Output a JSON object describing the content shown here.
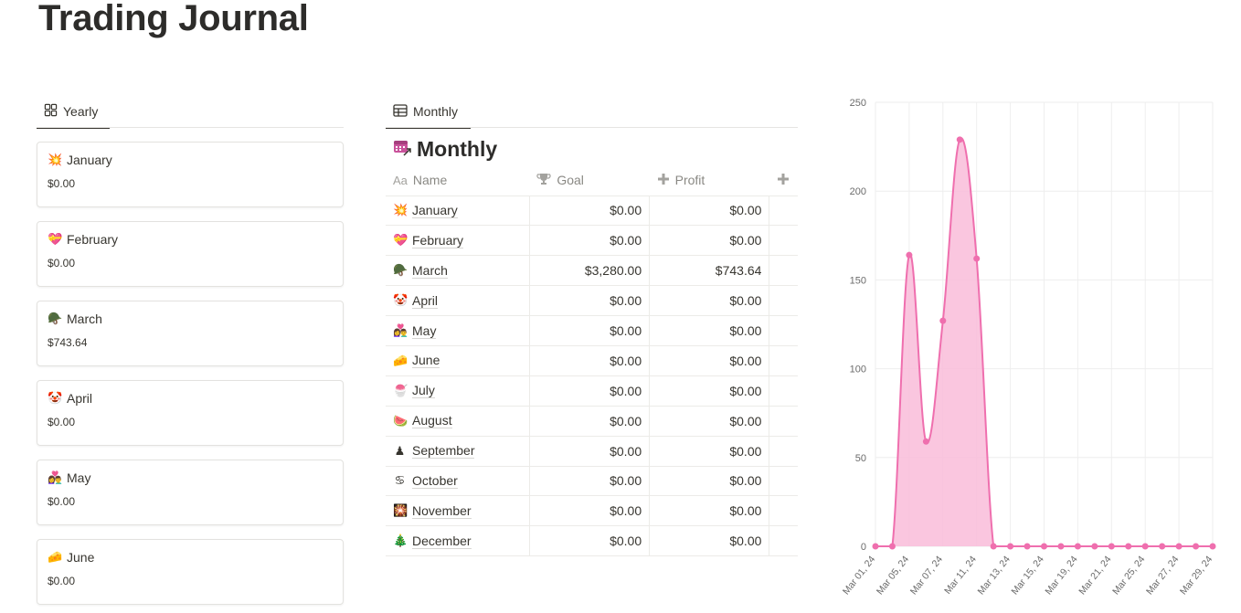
{
  "page": {
    "title": "Trading Journal"
  },
  "tabs": {
    "yearly": {
      "label": "Yearly",
      "icon": "gallery-grid-icon"
    },
    "monthly": {
      "label": "Monthly",
      "icon": "table-icon"
    }
  },
  "gallery": {
    "cards": [
      {
        "emoji": "💥",
        "name": "January",
        "value": "$0.00"
      },
      {
        "emoji": "💝",
        "name": "February",
        "value": "$0.00"
      },
      {
        "emoji": "🪖",
        "name": "March",
        "value": "$743.64"
      },
      {
        "emoji": "🤡",
        "name": "April",
        "value": "$0.00"
      },
      {
        "emoji": "👩‍❤️‍👨",
        "name": "May",
        "value": "$0.00"
      },
      {
        "emoji": "🧀",
        "name": "June",
        "value": "$0.00"
      }
    ]
  },
  "table": {
    "title": "Monthly",
    "headers": {
      "name": "Name",
      "goal": "Goal",
      "profit": "Profit",
      "name_prefix": "Aa"
    },
    "rows": [
      {
        "emoji": "💥",
        "name": "January",
        "goal": "$0.00",
        "profit": "$0.00"
      },
      {
        "emoji": "💝",
        "name": "February",
        "goal": "$0.00",
        "profit": "$0.00"
      },
      {
        "emoji": "🪖",
        "name": "March",
        "goal": "$3,280.00",
        "profit": "$743.64"
      },
      {
        "emoji": "🤡",
        "name": "April",
        "goal": "$0.00",
        "profit": "$0.00"
      },
      {
        "emoji": "👩‍❤️‍👨",
        "name": "May",
        "goal": "$0.00",
        "profit": "$0.00"
      },
      {
        "emoji": "🧀",
        "name": "June",
        "goal": "$0.00",
        "profit": "$0.00"
      },
      {
        "emoji": "🍧",
        "name": "July",
        "goal": "$0.00",
        "profit": "$0.00"
      },
      {
        "emoji": "🍉",
        "name": "August",
        "goal": "$0.00",
        "profit": "$0.00"
      },
      {
        "emoji": "♟",
        "name": "September",
        "goal": "$0.00",
        "profit": "$0.00"
      },
      {
        "emoji": "♋",
        "name": "October",
        "goal": "$0.00",
        "profit": "$0.00"
      },
      {
        "emoji": "🎇",
        "name": "November",
        "goal": "$0.00",
        "profit": "$0.00"
      },
      {
        "emoji": "🎄",
        "name": "December",
        "goal": "$0.00",
        "profit": "$0.00"
      }
    ]
  },
  "colors": {
    "accent": "#ef6fae",
    "fill": "#f9bcd9",
    "grid": "#eeeeee"
  },
  "chart_data": {
    "type": "area",
    "x": [
      "Mar 01, 24",
      "Mar 04, 24",
      "Mar 05, 24",
      "Mar 06, 24",
      "Mar 07, 24",
      "Mar 08, 24",
      "Mar 11, 24",
      "Mar 12, 24",
      "Mar 13, 24",
      "Mar 14, 24",
      "Mar 15, 24",
      "Mar 18, 24",
      "Mar 19, 24",
      "Mar 20, 24",
      "Mar 21, 24",
      "Mar 22, 24",
      "Mar 25, 24",
      "Mar 26, 24",
      "Mar 27, 24",
      "Mar 28, 24",
      "Mar 29, 24"
    ],
    "values": [
      0,
      0,
      164,
      59,
      127,
      229,
      162,
      0,
      0,
      0,
      0,
      0,
      0,
      0,
      0,
      0,
      0,
      0,
      0,
      0,
      0
    ],
    "xtick_labels": [
      "Mar 01, 24",
      "Mar 05, 24",
      "Mar 07, 24",
      "Mar 11, 24",
      "Mar 13, 24",
      "Mar 15, 24",
      "Mar 19, 24",
      "Mar 21, 24",
      "Mar 25, 24",
      "Mar 27, 24",
      "Mar 29, 24"
    ],
    "yticks": [
      0,
      50,
      100,
      150,
      200,
      250
    ],
    "ylim": [
      0,
      250
    ],
    "grid": true,
    "title": "",
    "xlabel": "",
    "ylabel": ""
  }
}
